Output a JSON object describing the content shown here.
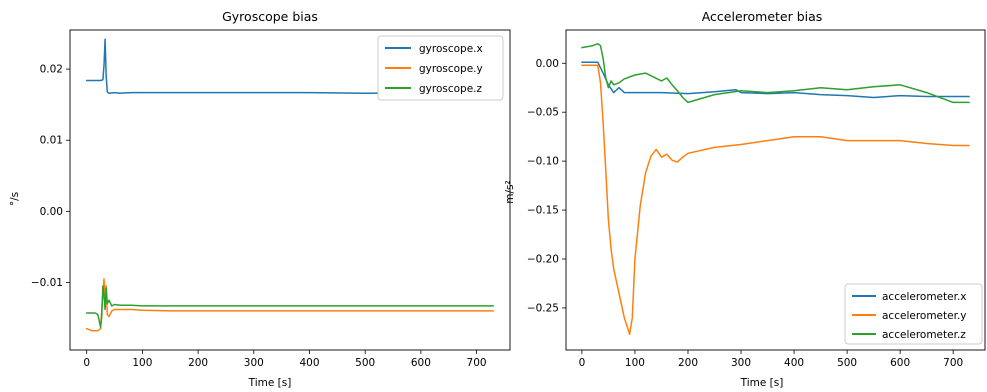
{
  "chart_data": [
    {
      "type": "line",
      "title": "Gyroscope bias",
      "xlabel": "Time [s]",
      "ylabel": "°/s",
      "xlim": [
        -30,
        760
      ],
      "ylim": [
        -0.0195,
        0.0255
      ],
      "xticks": [
        0,
        100,
        200,
        300,
        400,
        500,
        600,
        700
      ],
      "xtick_labels": [
        "0",
        "100",
        "200",
        "300",
        "400",
        "500",
        "600",
        "700"
      ],
      "yticks": [
        -0.01,
        0.0,
        0.01,
        0.02
      ],
      "ytick_labels": [
        "−0.01",
        "0.00",
        "0.01",
        "0.02"
      ],
      "grid": false,
      "legend": "top-right",
      "series": [
        {
          "name": "gyroscope.x",
          "color": "#1f77b4",
          "x": [
            0,
            25,
            29,
            31,
            33,
            35,
            37,
            40,
            50,
            60,
            80,
            100,
            150,
            200,
            300,
            400,
            500,
            600,
            700,
            730
          ],
          "y": [
            0.0184,
            0.0184,
            0.0185,
            0.0205,
            0.0242,
            0.019,
            0.0168,
            0.0166,
            0.0167,
            0.0166,
            0.0167,
            0.0167,
            0.0167,
            0.0167,
            0.0167,
            0.0167,
            0.0166,
            0.0167,
            0.0167,
            0.0167
          ]
        },
        {
          "name": "gyroscope.y",
          "color": "#ff7f0e",
          "x": [
            0,
            10,
            20,
            25,
            28,
            31,
            33,
            35,
            37,
            40,
            45,
            50,
            60,
            80,
            100,
            150,
            200,
            300,
            400,
            500,
            600,
            700,
            730
          ],
          "y": [
            -0.0165,
            -0.0168,
            -0.0168,
            -0.0165,
            -0.0125,
            -0.0095,
            -0.0125,
            -0.0105,
            -0.0145,
            -0.0148,
            -0.014,
            -0.0138,
            -0.0138,
            -0.0138,
            -0.0139,
            -0.014,
            -0.014,
            -0.014,
            -0.014,
            -0.014,
            -0.014,
            -0.014,
            -0.014
          ]
        },
        {
          "name": "gyroscope.z",
          "color": "#2ca02c",
          "x": [
            0,
            15,
            20,
            25,
            27,
            29,
            31,
            33,
            35,
            37,
            40,
            45,
            50,
            60,
            80,
            100,
            150,
            200,
            300,
            400,
            500,
            600,
            700,
            730
          ],
          "y": [
            -0.0143,
            -0.0143,
            -0.0145,
            -0.0163,
            -0.0148,
            -0.0105,
            -0.0118,
            -0.0138,
            -0.0108,
            -0.013,
            -0.0125,
            -0.0133,
            -0.0131,
            -0.0132,
            -0.0132,
            -0.0133,
            -0.0133,
            -0.0133,
            -0.0133,
            -0.0133,
            -0.0133,
            -0.0133,
            -0.0133,
            -0.0133
          ]
        }
      ]
    },
    {
      "type": "line",
      "title": "Accelerometer bias",
      "xlabel": "Time [s]",
      "ylabel": "m/s²",
      "xlim": [
        -30,
        760
      ],
      "ylim": [
        -0.293,
        0.034
      ],
      "xticks": [
        0,
        100,
        200,
        300,
        400,
        500,
        600,
        700
      ],
      "xtick_labels": [
        "0",
        "100",
        "200",
        "300",
        "400",
        "500",
        "600",
        "700"
      ],
      "yticks": [
        -0.25,
        -0.2,
        -0.15,
        -0.1,
        -0.05,
        0.0
      ],
      "ytick_labels": [
        "−0.25",
        "−0.20",
        "−0.15",
        "−0.10",
        "−0.05",
        "0.00"
      ],
      "grid": false,
      "legend": "bottom-right",
      "series": [
        {
          "name": "accelerometer.x",
          "color": "#1f77b4",
          "x": [
            0,
            30,
            40,
            50,
            60,
            70,
            80,
            100,
            150,
            200,
            250,
            290,
            300,
            350,
            400,
            450,
            500,
            550,
            600,
            650,
            700,
            730
          ],
          "y": [
            0.001,
            0.001,
            -0.01,
            -0.022,
            -0.03,
            -0.025,
            -0.03,
            -0.03,
            -0.03,
            -0.031,
            -0.029,
            -0.027,
            -0.03,
            -0.031,
            -0.03,
            -0.032,
            -0.033,
            -0.035,
            -0.033,
            -0.034,
            -0.034,
            -0.034
          ]
        },
        {
          "name": "accelerometer.y",
          "color": "#ff7f0e",
          "x": [
            0,
            30,
            35,
            40,
            45,
            50,
            55,
            60,
            70,
            80,
            90,
            95,
            100,
            110,
            120,
            130,
            140,
            150,
            160,
            170,
            180,
            190,
            200,
            250,
            300,
            350,
            400,
            450,
            500,
            550,
            600,
            650,
            700,
            730
          ],
          "y": [
            -0.002,
            -0.002,
            -0.02,
            -0.06,
            -0.11,
            -0.16,
            -0.19,
            -0.21,
            -0.235,
            -0.26,
            -0.277,
            -0.26,
            -0.2,
            -0.145,
            -0.112,
            -0.095,
            -0.088,
            -0.096,
            -0.093,
            -0.099,
            -0.101,
            -0.096,
            -0.092,
            -0.086,
            -0.083,
            -0.079,
            -0.075,
            -0.075,
            -0.079,
            -0.079,
            -0.079,
            -0.082,
            -0.084,
            -0.084
          ]
        },
        {
          "name": "accelerometer.z",
          "color": "#2ca02c",
          "x": [
            0,
            20,
            30,
            35,
            40,
            45,
            50,
            55,
            60,
            70,
            80,
            100,
            120,
            150,
            160,
            170,
            180,
            190,
            200,
            250,
            300,
            350,
            400,
            450,
            500,
            550,
            600,
            650,
            700,
            730
          ],
          "y": [
            0.016,
            0.018,
            0.02,
            0.018,
            0.005,
            -0.015,
            -0.025,
            -0.018,
            -0.022,
            -0.02,
            -0.016,
            -0.012,
            -0.01,
            -0.018,
            -0.015,
            -0.022,
            -0.028,
            -0.035,
            -0.04,
            -0.032,
            -0.028,
            -0.03,
            -0.028,
            -0.025,
            -0.027,
            -0.024,
            -0.022,
            -0.03,
            -0.04,
            -0.04
          ]
        }
      ]
    }
  ]
}
